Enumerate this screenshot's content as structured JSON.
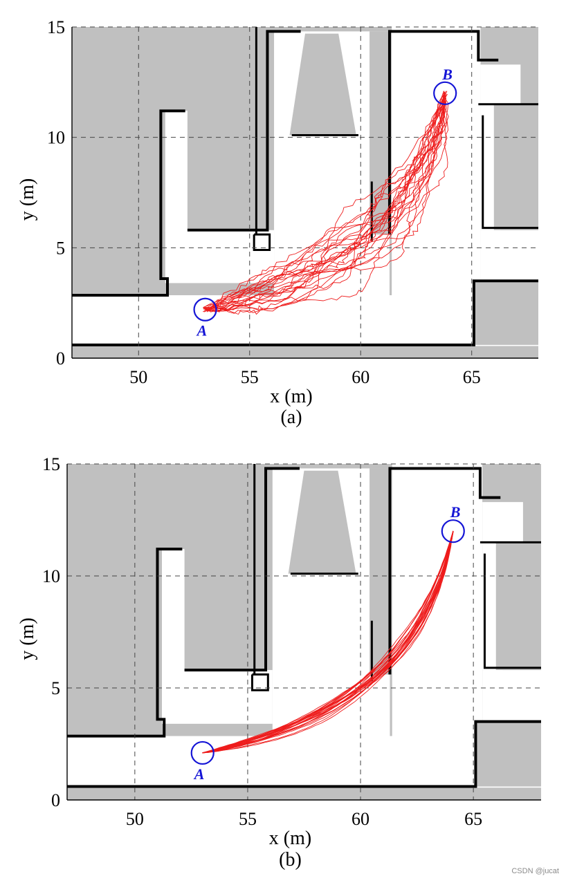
{
  "colors": {
    "occupied": "#c0c0c0",
    "wall": "#000000",
    "free": "#ffffff",
    "trajectory": "#ee1c1c",
    "marker": "#1515d6",
    "grid": "#444444"
  },
  "chart_data": [
    {
      "type": "line",
      "caption": "(a)",
      "xlabel": "x (m)",
      "ylabel": "y (m)",
      "xlim": [
        47,
        68
      ],
      "ylim": [
        0,
        15
      ],
      "xticks": [
        50,
        55,
        60,
        65
      ],
      "yticks": [
        0,
        5,
        10,
        15
      ],
      "grid": true,
      "points": [
        {
          "label": "A",
          "x": 53.0,
          "y": 2.2
        },
        {
          "label": "B",
          "x": 63.8,
          "y": 12.0
        }
      ],
      "trajectory_count": 25,
      "background": "occupancy grid map (grey = occupied, white = free, black = walls)"
    },
    {
      "type": "line",
      "caption": "(b)",
      "xlabel": "x (m)",
      "ylabel": "y (m)",
      "xlim": [
        47,
        68
      ],
      "ylim": [
        0,
        15
      ],
      "xticks": [
        50,
        55,
        60,
        65
      ],
      "yticks": [
        0,
        5,
        10,
        15
      ],
      "grid": true,
      "points": [
        {
          "label": "A",
          "x": 53.0,
          "y": 2.1
        },
        {
          "label": "B",
          "x": 64.1,
          "y": 12.0
        }
      ],
      "trajectory_count": 25,
      "background": "occupancy grid map (grey = occupied, white = free, black = walls)"
    }
  ],
  "watermark": "CSDN @jucat"
}
